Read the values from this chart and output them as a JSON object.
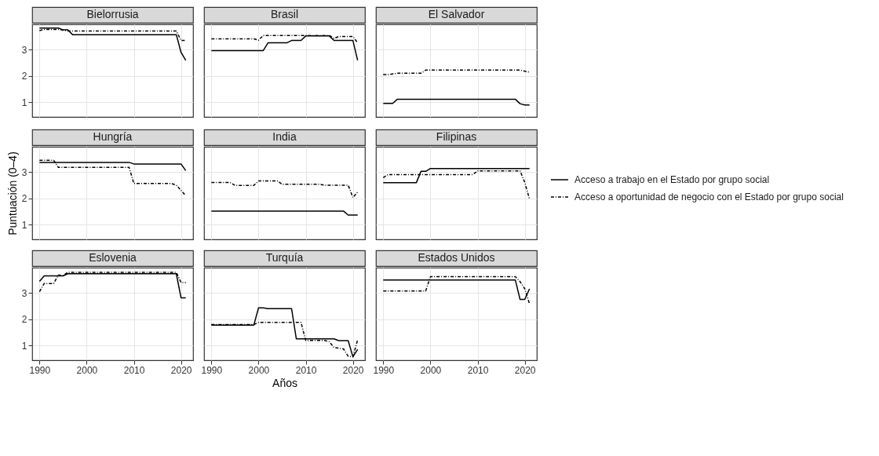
{
  "chart_data": [
    {
      "type": "line",
      "title": "Bielorrusia",
      "xlim": [
        1988.45,
        2022.55
      ],
      "ylim": [
        0.45,
        3.95
      ],
      "xticks": [
        1990,
        2000,
        2010,
        2020
      ],
      "yticks": [
        1,
        2,
        3
      ],
      "grid": true,
      "tick_labels": "y",
      "series": [
        {
          "color": "#000000",
          "line_style": "solid",
          "x": [
            1990,
            1994,
            1995,
            1996,
            1997,
            2019,
            2020,
            2021
          ],
          "values": [
            3.81,
            3.81,
            3.74,
            3.74,
            3.56,
            3.56,
            2.89,
            2.59
          ]
        },
        {
          "color": "#000000",
          "line_style": "dashdot",
          "x": [
            1990,
            1991,
            1994,
            1996,
            2019,
            2020,
            2021
          ],
          "values": [
            3.71,
            3.76,
            3.76,
            3.7,
            3.7,
            3.34,
            3.34
          ]
        }
      ]
    },
    {
      "type": "line",
      "title": "Brasil",
      "xlim": [
        1988.45,
        2022.55
      ],
      "ylim": [
        0.45,
        3.95
      ],
      "xticks": [
        1990,
        2000,
        2010,
        2020
      ],
      "yticks": [
        1,
        2,
        3
      ],
      "grid": true,
      "tick_labels": false,
      "series": [
        {
          "color": "#000000",
          "line_style": "solid",
          "x": [
            1990,
            2001,
            2002,
            2006,
            2007,
            2009,
            2010,
            2015,
            2016,
            2020,
            2021
          ],
          "values": [
            2.96,
            2.96,
            3.25,
            3.25,
            3.34,
            3.34,
            3.51,
            3.51,
            3.34,
            3.34,
            2.59
          ]
        },
        {
          "color": "#000000",
          "line_style": "dashdot",
          "x": [
            1990,
            1999,
            2000,
            2001,
            2015,
            2016,
            2017,
            2020,
            2021
          ],
          "values": [
            3.4,
            3.4,
            3.35,
            3.53,
            3.53,
            3.42,
            3.49,
            3.49,
            3.25
          ]
        }
      ]
    },
    {
      "type": "line",
      "title": "El Salvador",
      "xlim": [
        1988.45,
        2022.55
      ],
      "ylim": [
        0.45,
        3.95
      ],
      "xticks": [
        1990,
        2000,
        2010,
        2020
      ],
      "yticks": [
        1,
        2,
        3
      ],
      "grid": true,
      "tick_labels": false,
      "series": [
        {
          "color": "#000000",
          "line_style": "solid",
          "x": [
            1990,
            1992,
            1993,
            2018,
            2019,
            2020,
            2021
          ],
          "values": [
            0.96,
            0.96,
            1.12,
            1.12,
            0.95,
            0.9,
            0.9
          ]
        },
        {
          "color": "#000000",
          "line_style": "dashdot",
          "x": [
            1990,
            1991,
            1993,
            1998,
            1999,
            2019,
            2021
          ],
          "values": [
            2.05,
            2.05,
            2.1,
            2.1,
            2.22,
            2.22,
            2.14
          ]
        }
      ]
    },
    {
      "type": "line",
      "title": "Hungría",
      "ylabel": "Puntuación (0–4)",
      "xlim": [
        1988.45,
        2022.55
      ],
      "ylim": [
        0.45,
        3.95
      ],
      "xticks": [
        1990,
        2000,
        2010,
        2020
      ],
      "yticks": [
        1,
        2,
        3
      ],
      "grid": true,
      "tick_labels": "y",
      "series": [
        {
          "color": "#000000",
          "line_style": "solid",
          "x": [
            1990,
            2009,
            2010,
            2020,
            2021
          ],
          "values": [
            3.36,
            3.36,
            3.3,
            3.3,
            3.05
          ]
        },
        {
          "color": "#000000",
          "line_style": "dashdot",
          "x": [
            1990,
            1993,
            1994,
            2009,
            2010,
            2018,
            2019,
            2021
          ],
          "values": [
            3.44,
            3.44,
            3.17,
            3.17,
            2.56,
            2.56,
            2.5,
            2.1
          ]
        }
      ]
    },
    {
      "type": "line",
      "title": "India",
      "xlim": [
        1988.45,
        2022.55
      ],
      "ylim": [
        0.45,
        3.95
      ],
      "xticks": [
        1990,
        2000,
        2010,
        2020
      ],
      "yticks": [
        1,
        2,
        3
      ],
      "grid": true,
      "tick_labels": false,
      "series": [
        {
          "color": "#000000",
          "line_style": "solid",
          "x": [
            1990,
            2018,
            2019,
            2021
          ],
          "values": [
            1.52,
            1.52,
            1.37,
            1.37
          ]
        },
        {
          "color": "#000000",
          "line_style": "dashdot",
          "x": [
            1990,
            1994,
            1995,
            1999,
            2000,
            2004,
            2005,
            2013,
            2014,
            2019,
            2020,
            2021
          ],
          "values": [
            2.6,
            2.6,
            2.49,
            2.49,
            2.66,
            2.66,
            2.53,
            2.53,
            2.5,
            2.5,
            2.03,
            2.24
          ]
        }
      ]
    },
    {
      "type": "line",
      "title": "Filipinas",
      "xlim": [
        1988.45,
        2022.55
      ],
      "ylim": [
        0.45,
        3.95
      ],
      "xticks": [
        1990,
        2000,
        2010,
        2020
      ],
      "yticks": [
        1,
        2,
        3
      ],
      "grid": true,
      "tick_labels": false,
      "legend": "right",
      "series": [
        {
          "name": "Acceso a trabajo en el Estado por grupo social",
          "color": "#000000",
          "line_style": "solid",
          "x": [
            1990,
            1997,
            1998,
            1999,
            2000,
            2021
          ],
          "values": [
            2.59,
            2.59,
            3.02,
            3.02,
            3.13,
            3.13
          ]
        },
        {
          "name": "Acceso a oportunidad de negocio con el Estado por grupo social",
          "color": "#000000",
          "line_style": "dashdot",
          "x": [
            1990,
            1991,
            2009,
            2010,
            2019,
            2020,
            2021
          ],
          "values": [
            2.78,
            2.9,
            2.9,
            3.04,
            3.04,
            2.6,
            1.97
          ]
        }
      ]
    },
    {
      "type": "line",
      "title": "Eslovenia",
      "xlim": [
        1988.45,
        2022.55
      ],
      "ylim": [
        0.45,
        3.95
      ],
      "xticks": [
        1990,
        2000,
        2010,
        2020
      ],
      "yticks": [
        1,
        2,
        3
      ],
      "grid": true,
      "series": [
        {
          "color": "#000000",
          "line_style": "solid",
          "x": [
            1990,
            1991,
            1995,
            1996,
            2019,
            2020,
            2021
          ],
          "values": [
            3.43,
            3.64,
            3.64,
            3.72,
            3.72,
            2.81,
            2.81
          ]
        },
        {
          "color": "#000000",
          "line_style": "dashdot",
          "x": [
            1990,
            1991,
            1993,
            1994,
            1995,
            1996,
            2019,
            2020,
            2021
          ],
          "values": [
            3.04,
            3.35,
            3.35,
            3.67,
            3.65,
            3.77,
            3.77,
            3.39,
            3.39
          ]
        }
      ]
    },
    {
      "type": "line",
      "title": "Turquía",
      "xlabel": "Años",
      "xlim": [
        1988.45,
        2022.55
      ],
      "ylim": [
        0.45,
        3.95
      ],
      "xticks": [
        1990,
        2000,
        2010,
        2020
      ],
      "yticks": [
        1,
        2,
        3
      ],
      "grid": true,
      "tick_labels": "x",
      "series": [
        {
          "color": "#000000",
          "line_style": "solid",
          "x": [
            1990,
            1999,
            2000,
            2001,
            2002,
            2007,
            2008,
            2016,
            2017,
            2019,
            2020,
            2021
          ],
          "values": [
            1.78,
            1.78,
            2.43,
            2.43,
            2.4,
            2.4,
            1.26,
            1.26,
            1.19,
            1.19,
            0.58,
            0.86
          ]
        },
        {
          "color": "#000000",
          "line_style": "dashdot",
          "x": [
            1990,
            1999,
            2000,
            2009,
            2010,
            2014,
            2015,
            2016,
            2018,
            2019,
            2020,
            2021
          ],
          "values": [
            1.8,
            1.8,
            1.88,
            1.88,
            1.2,
            1.2,
            1.15,
            0.93,
            0.88,
            0.6,
            0.58,
            1.22
          ]
        }
      ]
    },
    {
      "type": "line",
      "title": "Estados Unidos",
      "xlim": [
        1988.45,
        2022.55
      ],
      "ylim": [
        0.45,
        3.95
      ],
      "xticks": [
        1990,
        2000,
        2010,
        2020
      ],
      "yticks": [
        1,
        2,
        3
      ],
      "grid": true,
      "tick_labels": "x",
      "series": [
        {
          "color": "#000000",
          "line_style": "solid",
          "x": [
            1990,
            2018,
            2019,
            2020,
            2021
          ],
          "values": [
            3.48,
            3.48,
            2.75,
            2.75,
            3.15
          ]
        },
        {
          "color": "#000000",
          "line_style": "dashdot",
          "x": [
            1990,
            1999,
            2000,
            2018,
            2019,
            2020,
            2021
          ],
          "values": [
            3.07,
            3.07,
            3.61,
            3.61,
            3.42,
            3.15,
            2.58
          ]
        }
      ]
    }
  ]
}
